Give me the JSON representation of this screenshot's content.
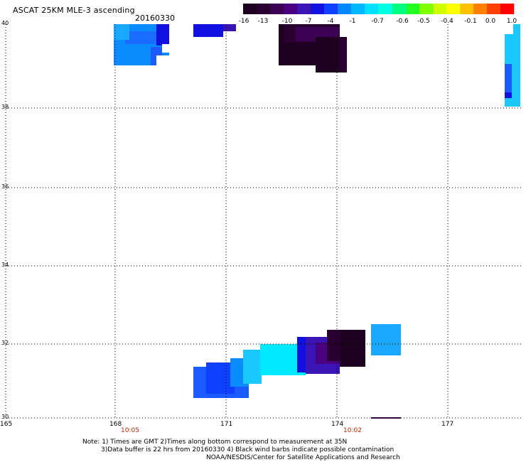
{
  "header": {
    "title": "ASCAT 25KM MLE-3 ascending",
    "date": "20160330"
  },
  "colorbar": {
    "labels": [
      "-16",
      "-13",
      "-10",
      "-7",
      "-4",
      "-1",
      "-0.7",
      "-0.6",
      "-0.5",
      "-0.4",
      "-0.1",
      "0.0",
      "1.0"
    ],
    "colors": [
      "#1e0020",
      "#2a0030",
      "#3c0055",
      "#4b0082",
      "#3a14b4",
      "#1010e0",
      "#1040ff",
      "#0088ff",
      "#00b8ff",
      "#00e0ff",
      "#00ffe0",
      "#00ff80",
      "#22ff22",
      "#80ff00",
      "#d0ff00",
      "#ffff00",
      "#ffc000",
      "#ff8000",
      "#ff4000",
      "#ff0000"
    ]
  },
  "axes": {
    "x_ticks": [
      "165",
      "168",
      "171",
      "174",
      "177"
    ],
    "y_ticks": [
      "40",
      "38",
      "36",
      "34",
      "32",
      "30"
    ],
    "time_labels": [
      "10:05",
      "10:02"
    ],
    "time_color": "#cc2200"
  },
  "notes": {
    "line1": "Note: 1) Times are GMT 2)Times along bottom correspond to measurement at 35N",
    "line2": "3)Data buffer is 22 hrs from 20160330 4) Black wind barbs indicate possible contamination",
    "line3": "NOAA/NESDIS/Center for Satellite Applications and Research"
  }
}
